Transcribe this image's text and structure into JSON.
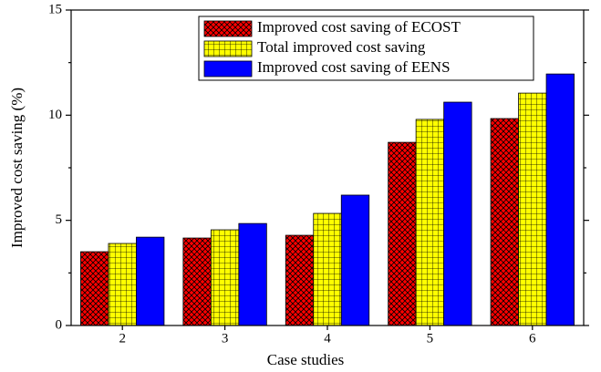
{
  "chart_data": {
    "type": "bar",
    "xlabel": "Case studies",
    "ylabel": "Improved cost saving (%)",
    "categories": [
      "2",
      "3",
      "4",
      "5",
      "6"
    ],
    "series": [
      {
        "name": "Improved cost saving of ECOST",
        "color": "#ff0000",
        "pattern": "crosshatch",
        "values": [
          3.51,
          4.16,
          4.29,
          8.71,
          9.84
        ]
      },
      {
        "name": "Total improved cost saving",
        "color": "#ffff00",
        "pattern": "grid",
        "values": [
          3.9,
          4.55,
          5.33,
          9.8,
          11.05
        ]
      },
      {
        "name": "Improved cost saving of EENS",
        "color": "#0000ff",
        "pattern": "solid",
        "values": [
          4.2,
          4.85,
          6.2,
          10.62,
          11.96
        ]
      }
    ],
    "ylim": [
      0,
      15
    ],
    "yticks": [
      0,
      5,
      10,
      15
    ],
    "legend": "upper right"
  }
}
